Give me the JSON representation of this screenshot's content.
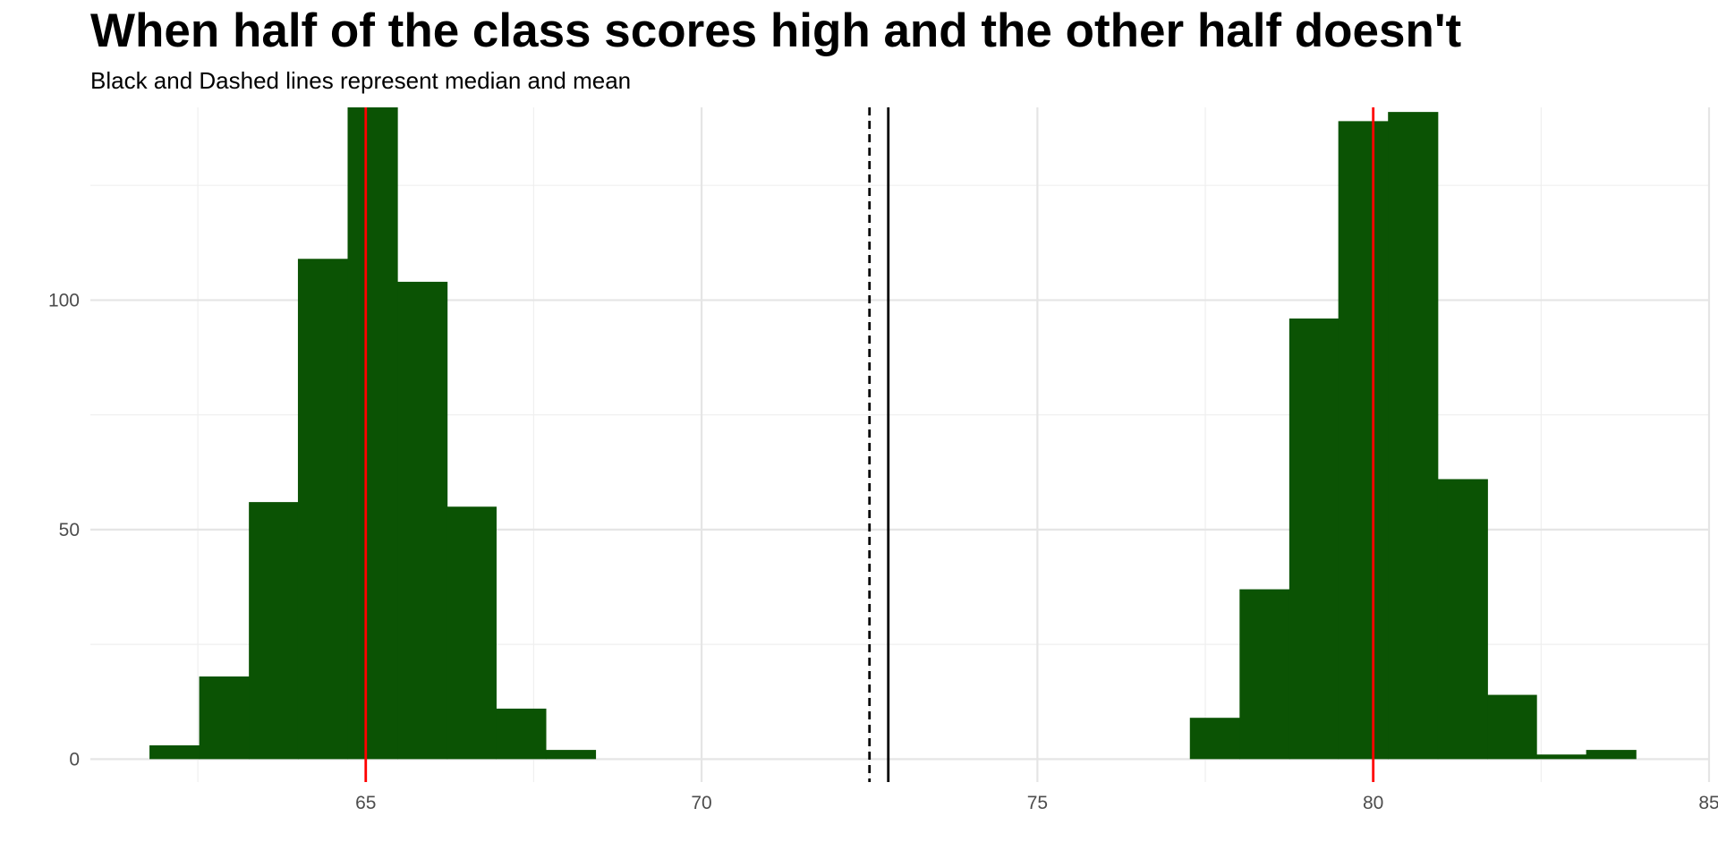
{
  "chart_data": {
    "type": "bar",
    "title": "When half of the class scores high and the other half doesn't",
    "subtitle": "Black and Dashed lines represent median and mean",
    "xlabel": "",
    "ylabel": "",
    "xlim": [
      60.9,
      85.0
    ],
    "ylim": [
      -5,
      142
    ],
    "grid": true,
    "legend": "none",
    "x_ticks": [
      65,
      70,
      75,
      80,
      85
    ],
    "y_ticks": [
      0,
      50,
      100
    ],
    "bin_width": 0.737,
    "bins": [
      {
        "x0": 61.78,
        "x1": 62.52,
        "count": 3
      },
      {
        "x0": 62.52,
        "x1": 63.26,
        "count": 18
      },
      {
        "x0": 63.26,
        "x1": 63.99,
        "count": 56
      },
      {
        "x0": 63.99,
        "x1": 64.73,
        "count": 109
      },
      {
        "x0": 64.73,
        "x1": 65.47,
        "count": 142
      },
      {
        "x0": 65.47,
        "x1": 66.21,
        "count": 104
      },
      {
        "x0": 66.21,
        "x1": 66.94,
        "count": 55
      },
      {
        "x0": 66.94,
        "x1": 67.68,
        "count": 11
      },
      {
        "x0": 67.68,
        "x1": 68.42,
        "count": 2
      },
      {
        "x0": 77.27,
        "x1": 78.01,
        "count": 9
      },
      {
        "x0": 78.01,
        "x1": 78.75,
        "count": 37
      },
      {
        "x0": 78.75,
        "x1": 79.48,
        "count": 96
      },
      {
        "x0": 79.48,
        "x1": 80.22,
        "count": 139
      },
      {
        "x0": 80.22,
        "x1": 80.96,
        "count": 141
      },
      {
        "x0": 80.96,
        "x1": 81.7,
        "count": 61
      },
      {
        "x0": 81.7,
        "x1": 82.43,
        "count": 14
      },
      {
        "x0": 82.43,
        "x1": 83.17,
        "count": 1
      },
      {
        "x0": 83.17,
        "x1": 83.91,
        "count": 2
      }
    ],
    "reference_lines": [
      {
        "name": "group-low-center",
        "x": 65.0,
        "color": "#ff0000",
        "style": "solid"
      },
      {
        "name": "group-high-center",
        "x": 80.0,
        "color": "#ff0000",
        "style": "solid"
      },
      {
        "name": "mean",
        "x": 72.5,
        "color": "#000000",
        "style": "dashed"
      },
      {
        "name": "median",
        "x": 72.78,
        "color": "#000000",
        "style": "solid"
      }
    ],
    "colors": {
      "bar_fill": "#0b5304",
      "grid_major": "#e5e5e5",
      "grid_minor": "#efefef",
      "tick_text": "#4d4d4d"
    }
  }
}
